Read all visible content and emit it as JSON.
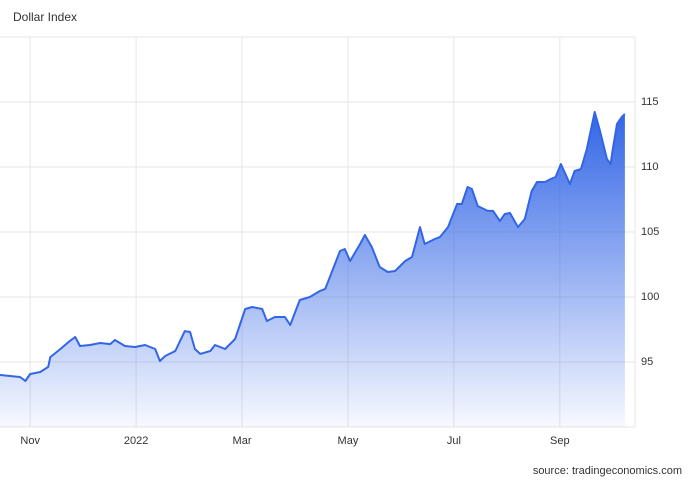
{
  "chart_data": {
    "type": "area",
    "title": "Dollar Index",
    "source": "source: tradingeconomics.com",
    "x": [
      0.43,
      0.62,
      0.81,
      0.91,
      1,
      1.19,
      1.34,
      1.38,
      1.57,
      1.75,
      1.85,
      1.94,
      2.13,
      2.32,
      2.51,
      2.6,
      2.79,
      2.98,
      3.17,
      3.36,
      3.45,
      3.55,
      3.74,
      3.92,
      4.02,
      4.11,
      4.21,
      4.4,
      4.49,
      4.68,
      4.87,
      5.06,
      5.19,
      5.38,
      5.47,
      5.62,
      5.81,
      5.91,
      6.09,
      6.28,
      6.47,
      6.57,
      6.66,
      6.85,
      6.94,
      7.04,
      7.23,
      7.32,
      7.45,
      7.6,
      7.75,
      7.89,
      8.08,
      8.21,
      8.36,
      8.45,
      8.64,
      8.74,
      8.89,
      9.06,
      9.15,
      9.26,
      9.34,
      9.45,
      9.64,
      9.74,
      9.87,
      9.96,
      10.06,
      10.21,
      10.34,
      10.47,
      10.57,
      10.72,
      10.83,
      10.92,
      11.02,
      11.19,
      11.28,
      11.4,
      11.51,
      11.66,
      11.75,
      11.89,
      11.96,
      12,
      12.08,
      12.17,
      12.23
    ],
    "series": [
      {
        "name": "Dollar Index",
        "color": "#3366e6",
        "values": [
          94.0,
          93.92,
          93.85,
          93.54,
          94.08,
          94.23,
          94.62,
          95.38,
          96.0,
          96.62,
          96.92,
          96.23,
          96.31,
          96.46,
          96.38,
          96.69,
          96.23,
          96.15,
          96.31,
          96.0,
          95.08,
          95.46,
          95.85,
          97.38,
          97.31,
          96.0,
          95.62,
          95.85,
          96.31,
          96.0,
          96.77,
          99.08,
          99.23,
          99.08,
          98.15,
          98.46,
          98.46,
          97.85,
          99.77,
          100.0,
          100.46,
          100.62,
          101.54,
          103.54,
          103.69,
          102.77,
          104.08,
          104.77,
          103.85,
          102.31,
          101.92,
          102.0,
          102.77,
          103.08,
          105.38,
          104.08,
          104.46,
          104.62,
          105.38,
          107.15,
          107.15,
          108.46,
          108.31,
          107.0,
          106.62,
          106.62,
          105.85,
          106.38,
          106.46,
          105.38,
          106.0,
          108.15,
          108.85,
          108.85,
          109.08,
          109.23,
          110.23,
          108.69,
          109.69,
          109.85,
          111.38,
          114.23,
          112.92,
          110.62,
          110.23,
          111.38,
          113.31,
          113.85,
          114.08
        ]
      }
    ],
    "xlim": [
      0.43,
      12.42
    ],
    "xticks": [
      {
        "value": 1,
        "label": "Nov"
      },
      {
        "value": 3,
        "label": "2022"
      },
      {
        "value": 5,
        "label": "Mar"
      },
      {
        "value": 7,
        "label": "May"
      },
      {
        "value": 9,
        "label": "Jul"
      },
      {
        "value": 11,
        "label": "Sep"
      }
    ],
    "ylim": [
      90,
      120
    ],
    "yticks": [
      95,
      100,
      105,
      110,
      115
    ],
    "grid": true
  }
}
